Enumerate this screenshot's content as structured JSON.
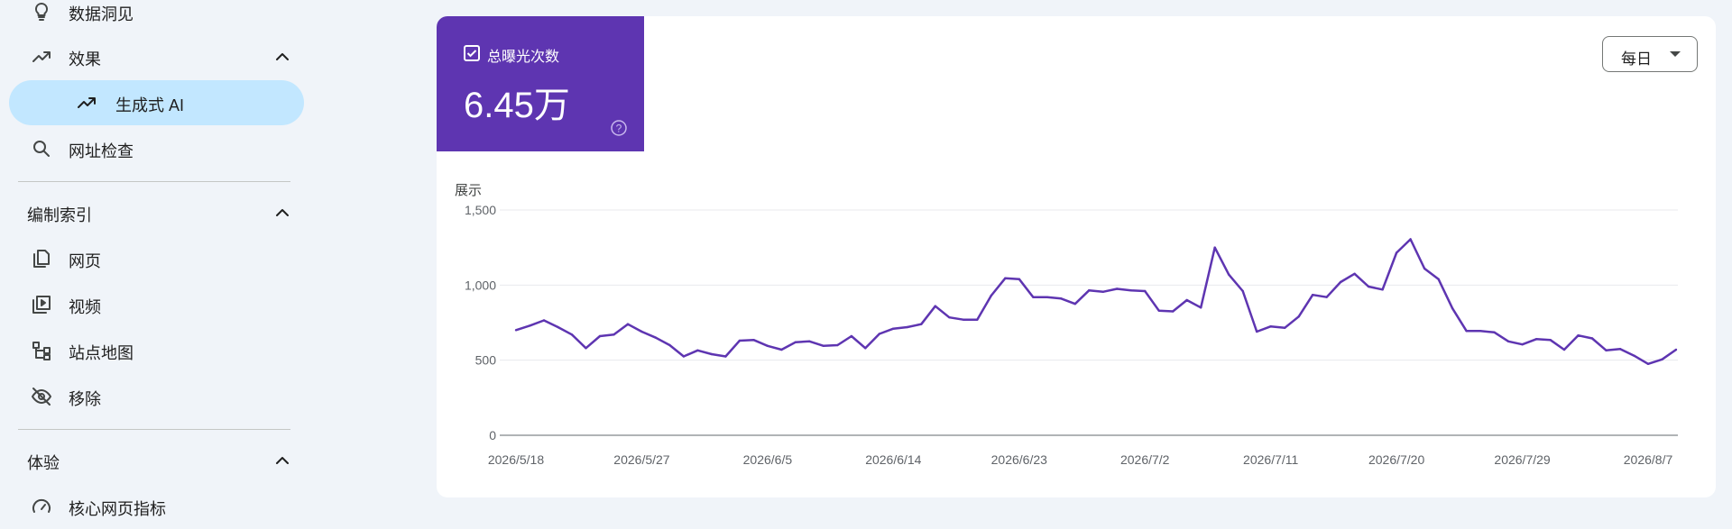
{
  "sidebar": {
    "items": [
      {
        "label": "数据洞见",
        "icon": "lightbulb-icon"
      },
      {
        "label": "效果",
        "icon": "trending-up-icon"
      },
      {
        "label": "生成式 AI",
        "icon": "trending-up-icon",
        "active": true
      },
      {
        "label": "网址检查",
        "icon": "search-icon"
      },
      {
        "label": "网页",
        "icon": "pages-icon"
      },
      {
        "label": "视频",
        "icon": "video-icon"
      },
      {
        "label": "站点地图",
        "icon": "sitemap-icon"
      },
      {
        "label": "移除",
        "icon": "visibility-off-icon"
      },
      {
        "label": "核心网页指标",
        "icon": "speed-icon"
      }
    ],
    "sections": {
      "indexing": "编制索引",
      "experience": "体验"
    }
  },
  "metric": {
    "label": "总曝光次数",
    "value": "6.45万",
    "checked": true,
    "color": "#5e35b1"
  },
  "frequency": {
    "selected": "每日"
  },
  "colors": {
    "accent": "#5e35b1",
    "active_nav": "#c2e7ff"
  },
  "chart_data": {
    "type": "line",
    "ylabel": "展示",
    "ylim": [
      0,
      1500
    ],
    "yticks": [
      0,
      500,
      1000,
      1500
    ],
    "ytick_labels": [
      "0",
      "500",
      "1,000",
      "1,500"
    ],
    "xtick_labels": [
      "2026/5/18",
      "2026/5/27",
      "2026/6/5",
      "2026/6/14",
      "2026/6/23",
      "2026/7/2",
      "2026/7/11",
      "2026/7/20",
      "2026/7/29",
      "2026/8/7"
    ],
    "grid": true,
    "series": [
      {
        "values": [
          700,
          730,
          765,
          720,
          670,
          580,
          660,
          670,
          740,
          690,
          650,
          600,
          525,
          565,
          540,
          525,
          630,
          635,
          595,
          570,
          620,
          625,
          595,
          600,
          660,
          580,
          675,
          710,
          720,
          740,
          860,
          785,
          770,
          770,
          930,
          1045,
          1040,
          920,
          920,
          910,
          875,
          965,
          955,
          975,
          965,
          960,
          830,
          825,
          900,
          850,
          1250,
          1070,
          960,
          690,
          725,
          715,
          790,
          935,
          920,
          1020,
          1075,
          990,
          970,
          1215,
          1305,
          1110,
          1040,
          845,
          695,
          695,
          685,
          625,
          605,
          640,
          635,
          570,
          665,
          645,
          565,
          575,
          530,
          475,
          505,
          570
        ]
      }
    ]
  }
}
